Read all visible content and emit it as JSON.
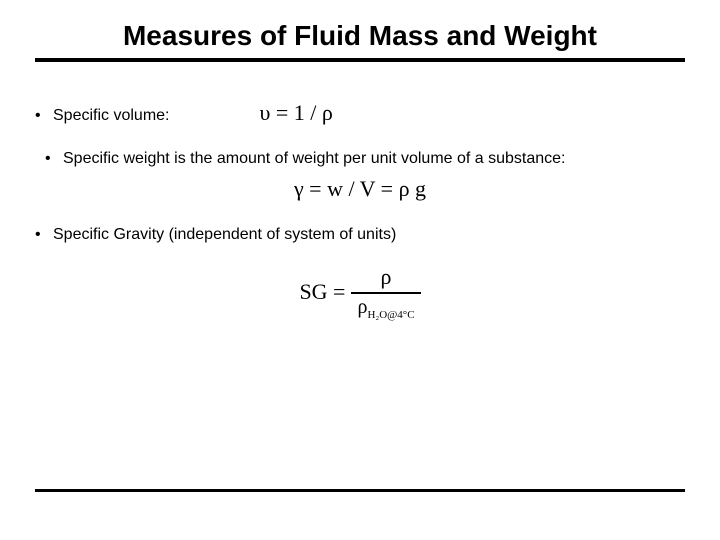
{
  "title": "Measures of Fluid Mass and Weight",
  "bullets": {
    "b1": {
      "label": "Specific volume:",
      "formula": "υ = 1 / ρ"
    },
    "b2": {
      "label": "Specific weight is the amount of weight per unit volume of a substance:",
      "formula": "γ = w / V = ρ g"
    },
    "b3": {
      "label": "Specific Gravity (independent of system of units)"
    }
  },
  "sg": {
    "lhs": "SG =",
    "numerator": "ρ",
    "den_symbol": "ρ",
    "den_sub": "H₂O@4°C"
  },
  "colors": {
    "text": "#000000",
    "bg": "#ffffff"
  }
}
